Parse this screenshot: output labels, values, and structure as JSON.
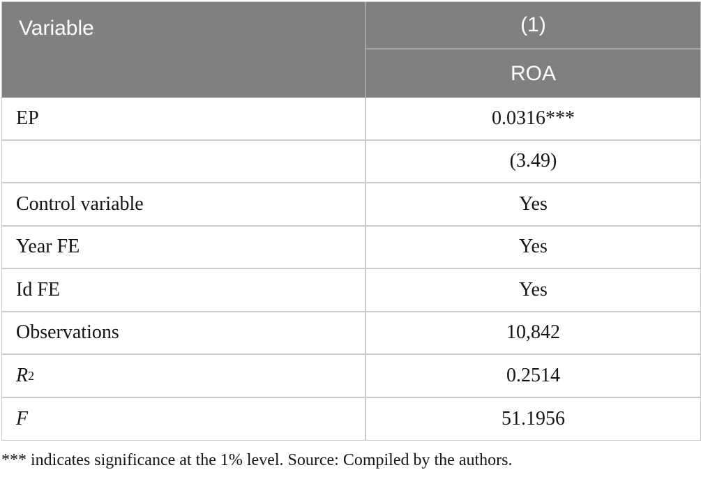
{
  "table": {
    "header": {
      "variable_col": "Variable",
      "model_number": "(1)",
      "dependent_variable": "ROA"
    },
    "rows": [
      {
        "label": "EP",
        "value": "0.0316***"
      },
      {
        "label": "",
        "value": "(3.49)"
      },
      {
        "label": "Control variable",
        "value": "Yes"
      },
      {
        "label": "Year FE",
        "value": "Yes"
      },
      {
        "label": "Id FE",
        "value": "Yes"
      },
      {
        "label": "Observations",
        "value": "10,842"
      },
      {
        "label": "R",
        "label_sup": "2",
        "value": "0.2514"
      },
      {
        "label": "F",
        "value": "51.1956"
      }
    ],
    "footnote": "*** indicates significance at the 1% level. Source: Compiled by the authors."
  },
  "colors": {
    "header_background": "#808080",
    "header_text": "#ffffff",
    "header_divider": "#a6a6a6",
    "body_border": "#cacaca",
    "body_text": "#141414"
  }
}
